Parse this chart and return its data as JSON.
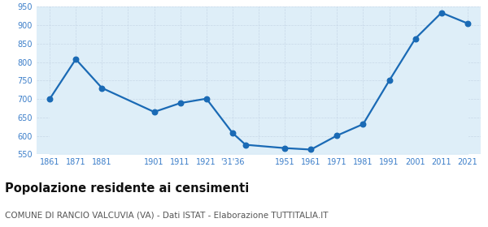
{
  "x_data": [
    0,
    1,
    2,
    4,
    5,
    6,
    7,
    7.5,
    9,
    10,
    11,
    12,
    13,
    14,
    15,
    16
  ],
  "values": [
    700,
    808,
    730,
    665,
    689,
    701,
    608,
    576,
    567,
    563,
    601,
    632,
    750,
    864,
    934,
    905
  ],
  "tick_positions": [
    0,
    1,
    2,
    3,
    4,
    5,
    6,
    7,
    8,
    9,
    10,
    11,
    12,
    13,
    14,
    15,
    16
  ],
  "tick_labels": [
    "1861",
    "1871",
    "1881",
    "",
    "1901",
    "1911",
    "1921",
    "'31'36",
    "",
    "1951",
    "1961",
    "1971",
    "1981",
    "1991",
    "2001",
    "2011",
    "2021"
  ],
  "ylim": [
    550,
    950
  ],
  "yticks": [
    550,
    600,
    650,
    700,
    750,
    800,
    850,
    900,
    950
  ],
  "xlim": [
    -0.5,
    16.5
  ],
  "line_color": "#1a6ab5",
  "fill_color": "#deeef8",
  "marker_color": "#1a6ab5",
  "background_color": "#ffffff",
  "grid_color": "#c8d8e8",
  "axis_label_color": "#3a7dc9",
  "title": "Popolazione residente ai censimenti",
  "subtitle": "COMUNE DI RANCIO VALCUVIA (VA) - Dati ISTAT - Elaborazione TUTTITALIA.IT",
  "title_color": "#111111",
  "subtitle_color": "#555555",
  "title_fontsize": 10.5,
  "subtitle_fontsize": 7.5,
  "tick_fontsize": 7,
  "linewidth": 1.6,
  "marker_size": 22
}
